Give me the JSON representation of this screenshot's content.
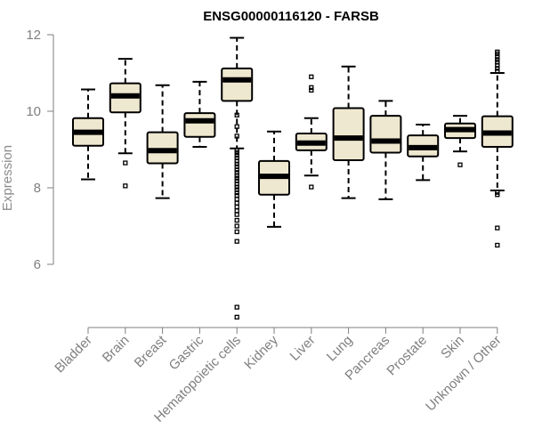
{
  "chart_data": {
    "type": "boxplot",
    "title": "ENSG00000116120 - FARSB",
    "xlabel": "",
    "ylabel": "Expression",
    "ylim": [
      4.5,
      12.2
    ],
    "yticks": [
      6,
      8,
      10,
      12
    ],
    "categories": [
      "Bladder",
      "Brain",
      "Breast",
      "Gastric",
      "Hematopoietic cells",
      "Kidney",
      "Liver",
      "Lung",
      "Pancreas",
      "Prostate",
      "Skin",
      "Unknown / Other"
    ],
    "boxes": [
      {
        "name": "Bladder",
        "min": 8.22,
        "q1": 9.1,
        "median": 9.45,
        "q3": 9.82,
        "max": 10.57,
        "outliers": []
      },
      {
        "name": "Brain",
        "min": 8.9,
        "q1": 9.97,
        "median": 10.4,
        "q3": 10.73,
        "max": 11.37,
        "outliers": [
          8.65,
          8.05
        ]
      },
      {
        "name": "Breast",
        "min": 7.73,
        "q1": 8.64,
        "median": 8.97,
        "q3": 9.45,
        "max": 10.68,
        "outliers": []
      },
      {
        "name": "Gastric",
        "min": 9.07,
        "q1": 9.33,
        "median": 9.75,
        "q3": 9.95,
        "max": 10.77,
        "outliers": []
      },
      {
        "name": "Hematopoietic cells",
        "min": 9.03,
        "q1": 10.27,
        "median": 10.82,
        "q3": 11.12,
        "max": 11.92,
        "outliers": [
          9.9,
          9.6,
          9.35,
          8.98,
          8.92,
          8.85,
          8.78,
          8.7,
          8.62,
          8.55,
          8.47,
          8.4,
          8.32,
          8.25,
          8.18,
          8.1,
          8.02,
          7.95,
          7.87,
          7.8,
          7.7,
          7.6,
          7.5,
          7.4,
          7.3,
          7.15,
          7.0,
          6.85,
          6.6,
          4.88,
          4.62
        ]
      },
      {
        "name": "Kidney",
        "min": 6.98,
        "q1": 7.82,
        "median": 8.3,
        "q3": 8.7,
        "max": 9.47,
        "outliers": []
      },
      {
        "name": "Liver",
        "min": 8.32,
        "q1": 8.98,
        "median": 9.17,
        "q3": 9.42,
        "max": 9.82,
        "outliers": [
          10.9,
          10.62,
          10.55,
          8.02
        ]
      },
      {
        "name": "Lung",
        "min": 7.73,
        "q1": 8.72,
        "median": 9.3,
        "q3": 10.08,
        "max": 11.17,
        "outliers": []
      },
      {
        "name": "Pancreas",
        "min": 7.7,
        "q1": 8.92,
        "median": 9.22,
        "q3": 9.88,
        "max": 10.27,
        "outliers": []
      },
      {
        "name": "Prostate",
        "min": 8.2,
        "q1": 8.82,
        "median": 9.05,
        "q3": 9.37,
        "max": 9.65,
        "outliers": []
      },
      {
        "name": "Skin",
        "min": 8.95,
        "q1": 9.3,
        "median": 9.52,
        "q3": 9.68,
        "max": 9.88,
        "outliers": [
          8.6
        ]
      },
      {
        "name": "Unknown / Other",
        "min": 7.93,
        "q1": 9.07,
        "median": 9.43,
        "q3": 9.87,
        "max": 11.0,
        "outliers": [
          11.55,
          11.5,
          11.42,
          11.35,
          11.28,
          11.2,
          11.12,
          11.05,
          7.88,
          7.82,
          6.95,
          6.5
        ]
      }
    ]
  }
}
